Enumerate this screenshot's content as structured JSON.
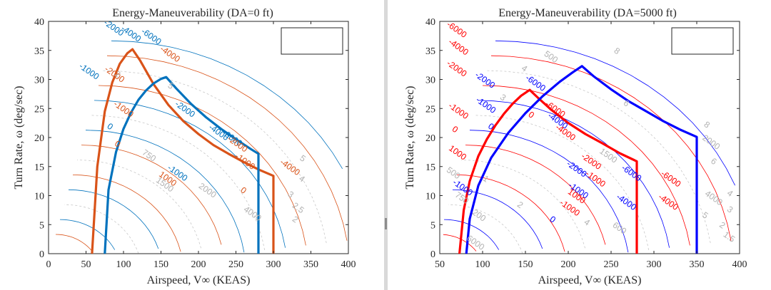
{
  "chart_data": [
    {
      "type": "line",
      "title": "Energy-Maneuverability (DA=0 ft)",
      "xlabel": "Airspeed, V∞ (KEAS)",
      "ylabel": "Turn Rate, ω (deg/sec)",
      "xlim": [
        0,
        400
      ],
      "ylim": [
        0,
        40
      ],
      "xticks": [
        0,
        50,
        100,
        150,
        200,
        250,
        300,
        350,
        400
      ],
      "yticks": [
        0,
        5,
        10,
        15,
        20,
        25,
        30,
        35,
        40
      ],
      "grid": false,
      "legend": "top-right (empty box)",
      "series": [
        {
          "color": "#d95319",
          "x": [
            58,
            65,
            75,
            85,
            95,
            105,
            112,
            122,
            140,
            160,
            180,
            200,
            220,
            240,
            260,
            280,
            300,
            300
          ],
          "y": [
            0,
            15,
            24.5,
            29.5,
            32.7,
            34.5,
            35.2,
            33.3,
            29.2,
            25.6,
            22.8,
            20.6,
            18.7,
            17.2,
            15.8,
            14.5,
            13.4,
            0
          ]
        },
        {
          "color": "#0072bd",
          "x": [
            75,
            80,
            90,
            100,
            110,
            120,
            130,
            140,
            150,
            157,
            170,
            190,
            210,
            230,
            250,
            270,
            280,
            280
          ],
          "y": [
            0,
            11,
            17.5,
            21.5,
            24.3,
            26.5,
            28.1,
            29.3,
            30.1,
            30.4,
            28.5,
            25.8,
            23.5,
            21.5,
            19.7,
            18.0,
            17.2,
            0
          ]
        }
      ],
      "contour_labels": [
        {
          "text": "-2000",
          "x": 85,
          "y": 38.5,
          "color": "#0072bd"
        },
        {
          "text": "-4000",
          "x": 108,
          "y": 37.5,
          "color": "#0072bd"
        },
        {
          "text": "-6000",
          "x": 135,
          "y": 37,
          "color": "#0072bd"
        },
        {
          "text": "-4000",
          "x": 160,
          "y": 34,
          "color": "#d95319"
        },
        {
          "text": "-1000",
          "x": 52,
          "y": 31,
          "color": "#0072bd"
        },
        {
          "text": "-2000",
          "x": 86,
          "y": 30.5,
          "color": "#d95319"
        },
        {
          "text": "-1000",
          "x": 98,
          "y": 24.5,
          "color": "#d95319"
        },
        {
          "text": "0",
          "x": 80,
          "y": 21.5,
          "color": "#0072bd"
        },
        {
          "text": "0",
          "x": 90,
          "y": 18.5,
          "color": "#d95319"
        },
        {
          "text": "-2000",
          "x": 180,
          "y": 24.5,
          "color": "#0072bd"
        },
        {
          "text": "-4000",
          "x": 225,
          "y": 20.5,
          "color": "#0072bd"
        },
        {
          "text": "-6000",
          "x": 243,
          "y": 19.5,
          "color": "#0072bd"
        },
        {
          "text": "-2000",
          "x": 250,
          "y": 18.5,
          "color": "#d95319"
        },
        {
          "text": "-1000",
          "x": 260,
          "y": 15.5,
          "color": "#d95319"
        },
        {
          "text": "-1000",
          "x": 170,
          "y": 13.5,
          "color": "#0072bd"
        },
        {
          "text": "1000",
          "x": 157,
          "y": 12.5,
          "color": "#d95319"
        },
        {
          "text": "0",
          "x": 258,
          "y": 10.5,
          "color": "#d95319"
        },
        {
          "text": "-4000",
          "x": 320,
          "y": 14.5,
          "color": "#d95319"
        },
        {
          "text": "2",
          "x": 90,
          "y": 30.5,
          "color": "#b3b3b3"
        },
        {
          "text": "5",
          "x": 161,
          "y": 28.5,
          "color": "#b3b3b3"
        },
        {
          "text": "750",
          "x": 132,
          "y": 16.5,
          "color": "#b3b3b3"
        },
        {
          "text": "1500",
          "x": 153,
          "y": 11.5,
          "color": "#b3b3b3"
        },
        {
          "text": "2000",
          "x": 210,
          "y": 10.5,
          "color": "#b3b3b3"
        },
        {
          "text": "4000",
          "x": 270,
          "y": 6.5,
          "color": "#b3b3b3"
        },
        {
          "text": "5",
          "x": 337,
          "y": 16,
          "color": "#b3b3b3"
        },
        {
          "text": "4",
          "x": 336,
          "y": 12.5,
          "color": "#b3b3b3"
        },
        {
          "text": "3",
          "x": 321,
          "y": 9.8,
          "color": "#b3b3b3"
        },
        {
          "text": "2.5",
          "x": 331,
          "y": 7.5,
          "color": "#b3b3b3"
        },
        {
          "text": "2",
          "x": 327,
          "y": 5.5,
          "color": "#b3b3b3"
        }
      ]
    },
    {
      "type": "line",
      "title": "Energy-Maneuverability (DA=5000 ft)",
      "xlabel": "Airspeed, V∞ (KEAS)",
      "ylabel": "Turn Rate, ω (deg/sec)",
      "xlim": [
        50,
        400
      ],
      "ylim": [
        0,
        40
      ],
      "xticks": [
        50,
        100,
        150,
        200,
        250,
        300,
        350,
        400
      ],
      "yticks": [
        0,
        5,
        10,
        15,
        20,
        25,
        30,
        35,
        40
      ],
      "grid": false,
      "legend": "top-right (empty box)",
      "series": [
        {
          "color": "#ff0000",
          "x": [
            73,
            78,
            85,
            95,
            105,
            115,
            125,
            135,
            145,
            155,
            165,
            180,
            200,
            220,
            240,
            260,
            280,
            280
          ],
          "y": [
            0,
            7.5,
            12.5,
            16.8,
            19.7,
            22.1,
            24.1,
            25.8,
            27.2,
            28.2,
            26.8,
            24.8,
            22.5,
            20.6,
            19.0,
            17.3,
            15.9,
            0
          ]
        },
        {
          "color": "#0000ff",
          "x": [
            81,
            85,
            95,
            110,
            130,
            150,
            170,
            190,
            205,
            216,
            230,
            250,
            270,
            290,
            310,
            330,
            350,
            350
          ],
          "y": [
            0,
            6,
            11.7,
            16.5,
            20.8,
            24.2,
            27.1,
            29.6,
            31.2,
            32.3,
            30.5,
            28.3,
            26.3,
            24.6,
            22.9,
            21.4,
            20.1,
            0
          ]
        }
      ],
      "contour_labels": [
        {
          "text": "-6000",
          "x": 68,
          "y": 38.2,
          "color": "#ff0000"
        },
        {
          "text": "-4000",
          "x": 70,
          "y": 35.2,
          "color": "#ff0000"
        },
        {
          "text": "-2000",
          "x": 68,
          "y": 31.5,
          "color": "#ff0000"
        },
        {
          "text": "-2000",
          "x": 101,
          "y": 29.5,
          "color": "#0000ff"
        },
        {
          "text": "-1000",
          "x": 102,
          "y": 25.2,
          "color": "#0000ff"
        },
        {
          "text": "0",
          "x": 108,
          "y": 21.5,
          "color": "#0000ff"
        },
        {
          "text": "-1000",
          "x": 70,
          "y": 24.2,
          "color": "#ff0000"
        },
        {
          "text": "0",
          "x": 66,
          "y": 21,
          "color": "#ff0000"
        },
        {
          "text": "1000",
          "x": 69,
          "y": 17,
          "color": "#ff0000"
        },
        {
          "text": "-6000",
          "x": 160,
          "y": 29,
          "color": "#0000ff"
        },
        {
          "text": "-6000",
          "x": 183,
          "y": 24.5,
          "color": "#ff0000"
        },
        {
          "text": "-4000",
          "x": 186,
          "y": 22.5,
          "color": "#0000ff"
        },
        {
          "text": "-4000",
          "x": 195,
          "y": 20.5,
          "color": "#ff0000"
        },
        {
          "text": "-2000",
          "x": 225,
          "y": 15.5,
          "color": "#ff0000"
        },
        {
          "text": "-1000",
          "x": 230,
          "y": 12.5,
          "color": "#ff0000"
        },
        {
          "text": "-2000",
          "x": 208,
          "y": 14.2,
          "color": "#0000ff"
        },
        {
          "text": "-1000",
          "x": 210,
          "y": 10.5,
          "color": "#0000ff"
        },
        {
          "text": "1000",
          "x": 208,
          "y": 9.5,
          "color": "#ff0000"
        },
        {
          "text": "-1000",
          "x": 200,
          "y": 7.5,
          "color": "#ff0000"
        },
        {
          "text": "0",
          "x": 180,
          "y": 5.5,
          "color": "#0000ff"
        },
        {
          "text": "-4000",
          "x": 266,
          "y": 8.5,
          "color": "#0000ff"
        },
        {
          "text": "-6000",
          "x": 272,
          "y": 13.5,
          "color": "#0000ff"
        },
        {
          "text": "-6000",
          "x": 318,
          "y": 12.5,
          "color": "#ff0000"
        },
        {
          "text": "-4000",
          "x": 315,
          "y": 8.5,
          "color": "#ff0000"
        },
        {
          "text": "-1000",
          "x": 75,
          "y": 11,
          "color": "#0000ff"
        },
        {
          "text": "8",
          "x": 255,
          "y": 34.5,
          "color": "#b3b3b3"
        },
        {
          "text": "500",
          "x": 178,
          "y": 33.5,
          "color": "#b3b3b3"
        },
        {
          "text": "4",
          "x": 147,
          "y": 31.5,
          "color": "#b3b3b3"
        },
        {
          "text": "6",
          "x": 266,
          "y": 25.5,
          "color": "#b3b3b3"
        },
        {
          "text": "8",
          "x": 360,
          "y": 21.8,
          "color": "#b3b3b3"
        },
        {
          "text": "2000",
          "x": 365,
          "y": 18.8,
          "color": "#b3b3b3"
        },
        {
          "text": "6",
          "x": 368,
          "y": 15.5,
          "color": "#b3b3b3"
        },
        {
          "text": "4000",
          "x": 368,
          "y": 9.2,
          "color": "#b3b3b3"
        },
        {
          "text": "4",
          "x": 387,
          "y": 10,
          "color": "#b3b3b3"
        },
        {
          "text": "3",
          "x": 387,
          "y": 7.2,
          "color": "#b3b3b3"
        },
        {
          "text": "2",
          "x": 378,
          "y": 4.5,
          "color": "#b3b3b3"
        },
        {
          "text": "1.5",
          "x": 386,
          "y": 2.5,
          "color": "#b3b3b3"
        },
        {
          "text": "6000",
          "x": 90,
          "y": 1.5,
          "color": "#b3b3b3"
        },
        {
          "text": "4",
          "x": 220,
          "y": 5,
          "color": "#b3b3b3"
        },
        {
          "text": "600",
          "x": 258,
          "y": 4,
          "color": "#b3b3b3"
        },
        {
          "text": "500",
          "x": 64,
          "y": 13.5,
          "color": "#b3b3b3"
        },
        {
          "text": "1500",
          "x": 245,
          "y": 16.5,
          "color": "#b3b3b3"
        },
        {
          "text": "750",
          "x": 74,
          "y": 9.2,
          "color": "#b3b3b3"
        },
        {
          "text": "3",
          "x": 122,
          "y": 26.5,
          "color": "#b3b3b3"
        },
        {
          "text": "2",
          "x": 142,
          "y": 8,
          "color": "#b3b3b3"
        },
        {
          "text": "1",
          "x": 102,
          "y": 12.5,
          "color": "#b3b3b3"
        },
        {
          "text": "200",
          "x": 94,
          "y": 6.2,
          "color": "#b3b3b3"
        },
        {
          "text": "5",
          "x": 358,
          "y": 6.2,
          "color": "#b3b3b3"
        },
        {
          "text": "0",
          "x": 155,
          "y": 23.5,
          "color": "#ff0000"
        }
      ]
    }
  ]
}
